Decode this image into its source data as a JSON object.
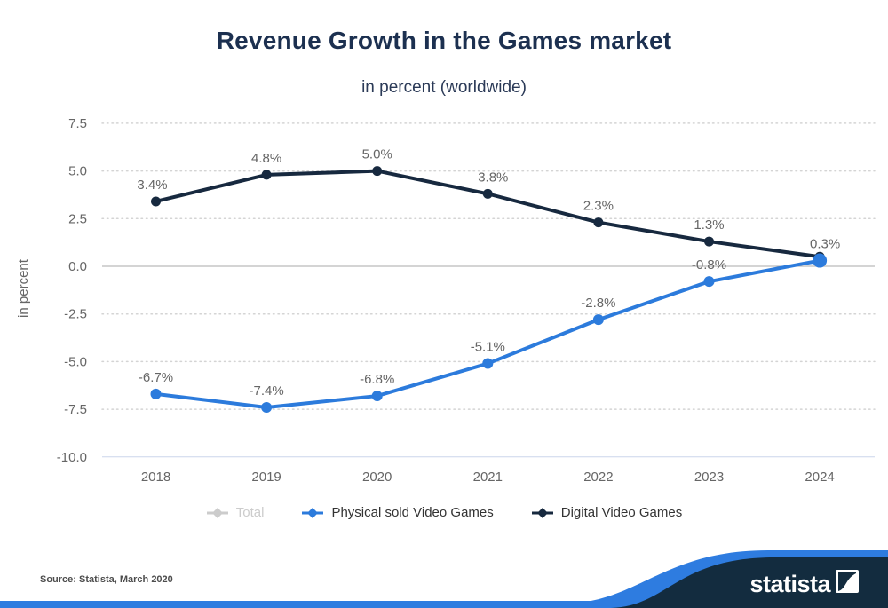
{
  "header": {
    "title": "Revenue Growth in the Games market",
    "subtitle": "in percent (worldwide)"
  },
  "chart_data": {
    "type": "line",
    "categories": [
      "2018",
      "2019",
      "2020",
      "2021",
      "2022",
      "2023",
      "2024"
    ],
    "series": [
      {
        "name": "Total",
        "color": "#cccccc",
        "disabled": true,
        "values": [],
        "labels": []
      },
      {
        "name": "Digital Video Games",
        "color": "#17293f",
        "disabled": false,
        "values": [
          3.4,
          4.8,
          5.0,
          3.8,
          2.3,
          1.3,
          0.5
        ],
        "labels": [
          "3.4%",
          "4.8%",
          "5.0%",
          "3.8%",
          "2.3%",
          "1.3%",
          ""
        ]
      },
      {
        "name": "Physical sold Video Games",
        "color": "#2c7bdc",
        "disabled": false,
        "values": [
          -6.7,
          -7.4,
          -6.8,
          -5.1,
          -2.8,
          -0.8,
          0.3
        ],
        "labels": [
          "-6.7%",
          "-7.4%",
          "-6.8%",
          "-5.1%",
          "-2.8%",
          "-0.8%",
          "0.3%"
        ],
        "endpoint_emphasis": true
      }
    ],
    "title": "Revenue Growth in the Games market",
    "subtitle": "in percent (worldwide)",
    "xlabel": "",
    "ylabel": "in percent",
    "yticks": [
      7.5,
      5.0,
      2.5,
      0.0,
      -2.5,
      -5.0,
      -7.5,
      -10.0
    ],
    "ylim": [
      -10.0,
      8.5
    ],
    "grid": "dotted-horizontal",
    "legend_position": "bottom"
  },
  "legend": {
    "items": [
      {
        "label": "Total",
        "color": "#cccccc",
        "disabled": true
      },
      {
        "label": "Physical sold Video Games",
        "color": "#2c7bdc",
        "disabled": false
      },
      {
        "label": "Digital Video Games",
        "color": "#17293f",
        "disabled": false
      }
    ]
  },
  "footer": {
    "source": "Source: Statista, March 2020",
    "brand": "statista"
  },
  "colors": {
    "title": "#1c3050",
    "subtitle": "#2b3a57",
    "axis_text": "#666666",
    "data_label": "#666666",
    "grid_dotted": "#d4d4d4",
    "zero_line": "#a8a8a8",
    "axis_line": "#ccd6eb",
    "brand_blue": "#2e7ce0",
    "brand_dark": "#132c3f",
    "disabled_gray": "#cccccc"
  }
}
